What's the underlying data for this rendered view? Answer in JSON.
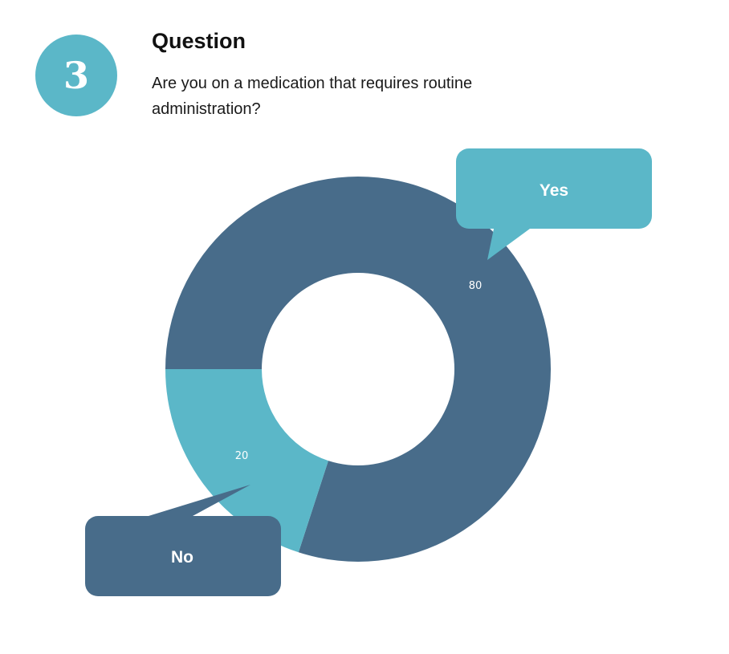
{
  "question": {
    "number": "3",
    "heading": "Question",
    "text": "Are you on a medication that requires routine administration?"
  },
  "colors": {
    "badge": "#5bb7c8",
    "yes": "#486c8a",
    "no": "#5bb7c8"
  },
  "chart_data": {
    "type": "pie",
    "variant": "donut",
    "categories": [
      "Yes",
      "No"
    ],
    "values": [
      80,
      20
    ],
    "data_labels": [
      "80",
      "20"
    ],
    "callouts": [
      "Yes",
      "No"
    ]
  }
}
